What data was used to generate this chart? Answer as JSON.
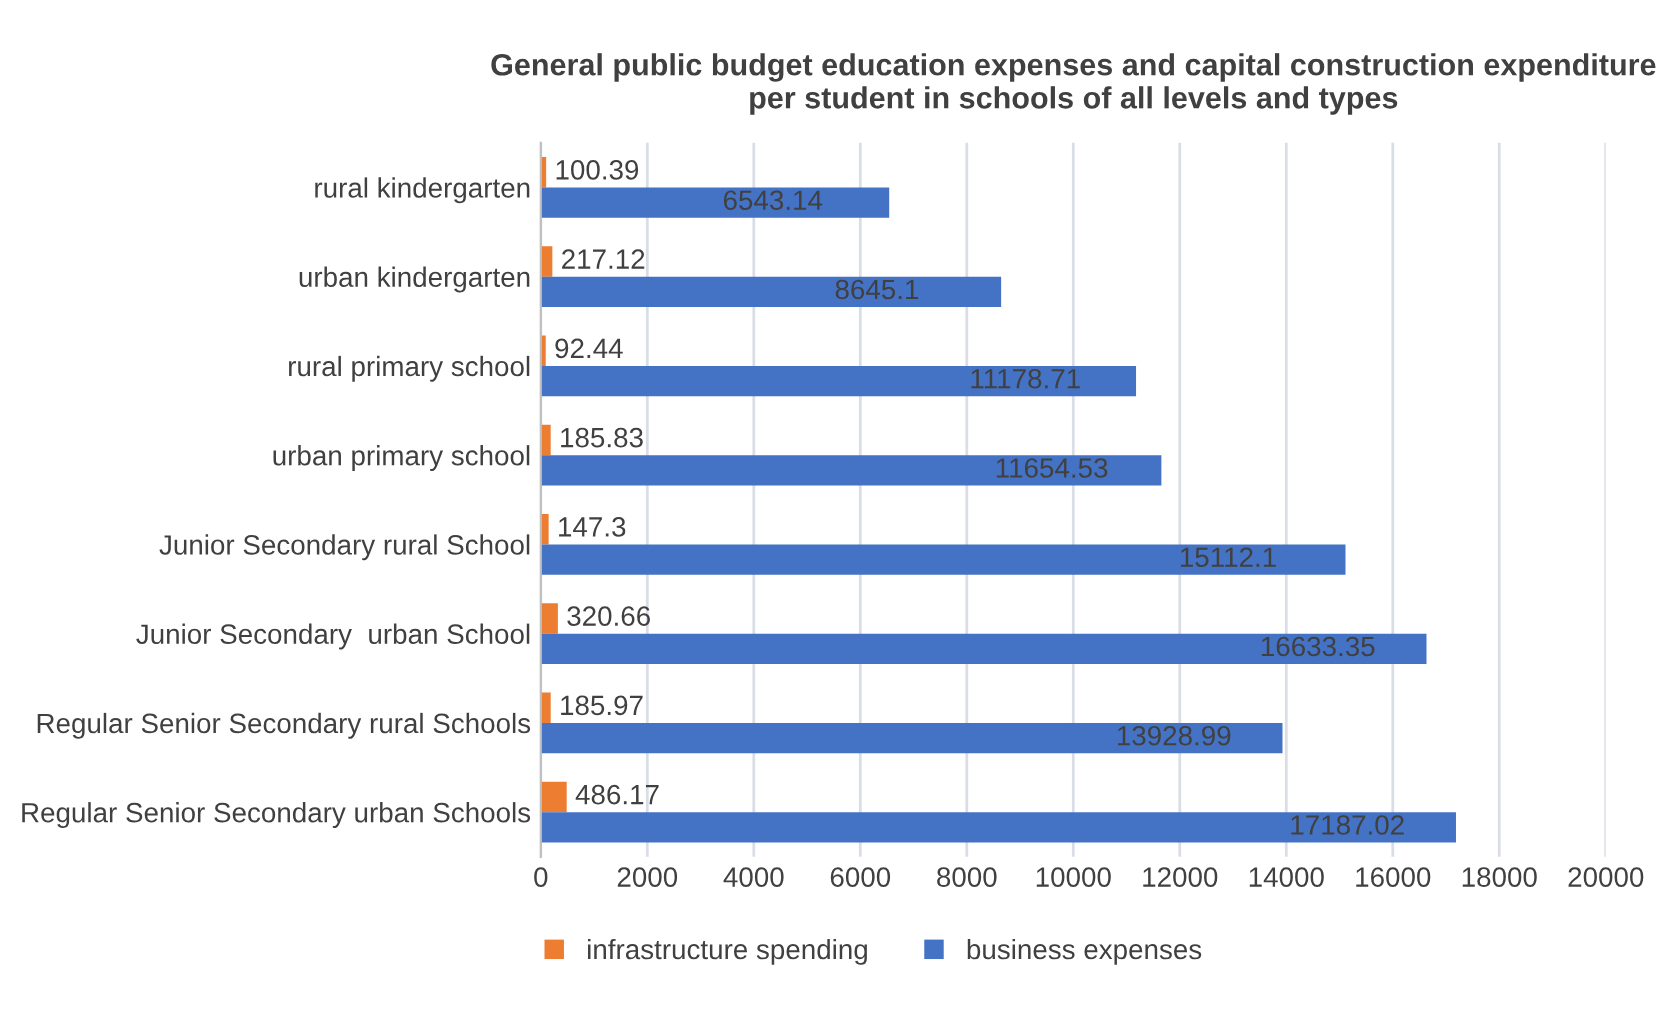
{
  "chart_data": {
    "type": "bar",
    "orientation": "horizontal",
    "title": "General public budget education expenses and capital construction expenditure per student in schools of all levels and types",
    "categories": [
      "rural kindergarten",
      "urban kindergarten",
      "rural primary school",
      "urban primary school",
      "Junior Secondary rural School",
      "Junior Secondary  urban School",
      "Regular Senior Secondary rural Schools",
      "Regular Senior Secondary urban Schools"
    ],
    "series": [
      {
        "name": "infrastructure spending",
        "color": "#ed7d31",
        "values": [
          100.39,
          217.12,
          92.44,
          185.83,
          147.3,
          320.66,
          185.97,
          486.17
        ]
      },
      {
        "name": "business expenses",
        "color": "#4472c4",
        "values": [
          6543.14,
          8645.1,
          11178.71,
          11654.53,
          15112.1,
          16633.35,
          13928.99,
          17187.02
        ]
      }
    ],
    "xlim": [
      0,
      20000
    ],
    "xticks": [
      0,
      2000,
      4000,
      6000,
      8000,
      10000,
      12000,
      14000,
      16000,
      18000,
      20000
    ],
    "grid": "x",
    "legend": "bottom",
    "data_labels": true
  }
}
